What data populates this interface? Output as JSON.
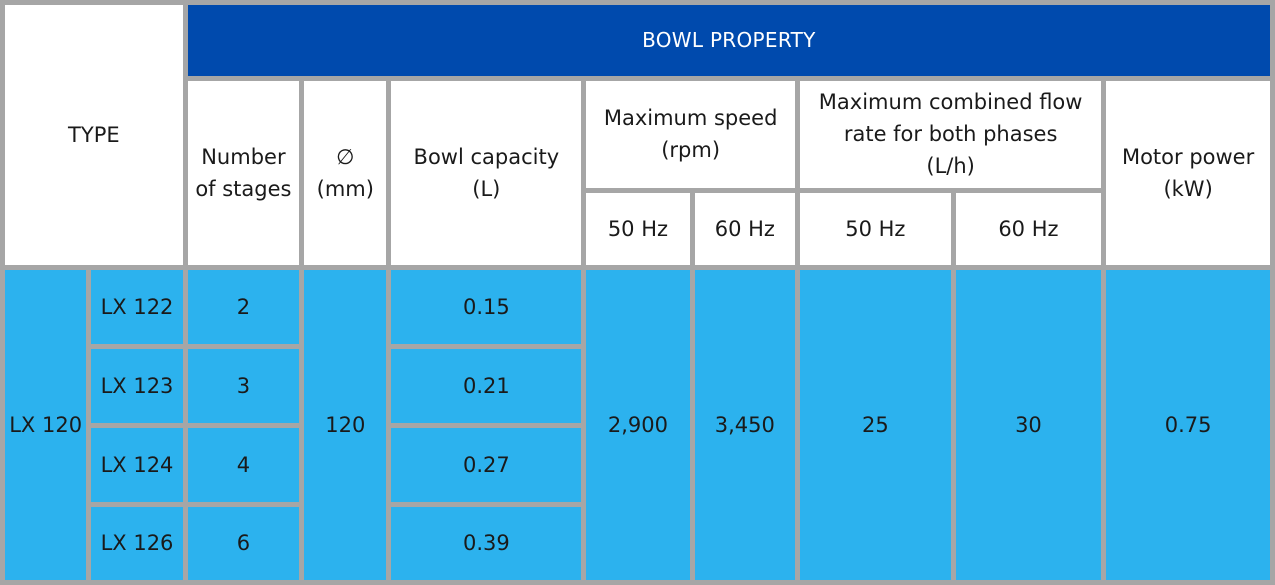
{
  "header": {
    "type_label": "TYPE",
    "bowl_property": "BOWL PROPERTY",
    "stages_label": "Number of stages",
    "diameter_symbol": "∅",
    "diameter_unit": "(mm)",
    "capacity_label": "Bowl capacity",
    "capacity_unit": "(L)",
    "speed_label": "Maximum speed",
    "speed_unit": "(rpm)",
    "flow_label": "Maximum combined flow rate for both phases",
    "flow_unit": "(L/h)",
    "power_label": "Motor power",
    "power_unit": "(kW)",
    "speed_50": "50 Hz",
    "speed_60": "60 Hz",
    "flow_50": "50 Hz",
    "flow_60": "60 Hz"
  },
  "series": {
    "name": "LX 120",
    "diameter": "120",
    "speed_50": "2,900",
    "speed_60": "3,450",
    "flow_50": "25",
    "flow_60": "30",
    "power": "0.75"
  },
  "models": [
    {
      "model": "LX 122",
      "stages": "2",
      "capacity": "0.15"
    },
    {
      "model": "LX 123",
      "stages": "3",
      "capacity": "0.21"
    },
    {
      "model": "LX 124",
      "stages": "4",
      "capacity": "0.27"
    },
    {
      "model": "LX 126",
      "stages": "6",
      "capacity": "0.39"
    }
  ]
}
